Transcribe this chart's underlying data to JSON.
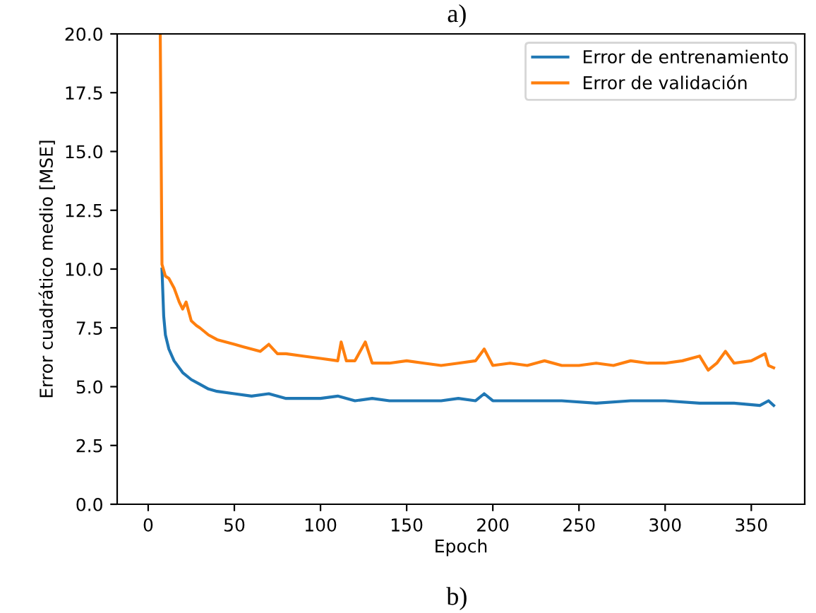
{
  "chart_data": {
    "type": "line",
    "xlabel": "Epoch",
    "ylabel": "Error cuadrático medio [MSE]",
    "annotations": [
      "a)",
      "b)"
    ],
    "xlim": [
      -18,
      381
    ],
    "xticks": [
      0,
      50,
      100,
      150,
      200,
      250,
      300,
      350
    ],
    "ylim": [
      0,
      20
    ],
    "yticks": [
      {
        "value": 0,
        "label": "0.0"
      },
      {
        "value": 2.5,
        "label": "2.5"
      },
      {
        "value": 5,
        "label": "5.0"
      },
      {
        "value": 7.5,
        "label": "7.5"
      },
      {
        "value": 10,
        "label": "10.0"
      },
      {
        "value": 12.5,
        "label": "12.5"
      },
      {
        "value": 15,
        "label": "15.0"
      },
      {
        "value": 17.5,
        "label": "17.5"
      },
      {
        "value": 20,
        "label": "20.0"
      }
    ],
    "grid": false,
    "legend": "top right",
    "marker": "none",
    "line_style": "solid",
    "series": [
      {
        "name": "Error de entrenamiento",
        "color": "#1f77b4",
        "x": [
          8,
          9,
          10,
          12,
          15,
          20,
          25,
          30,
          35,
          40,
          50,
          60,
          70,
          80,
          90,
          100,
          110,
          120,
          130,
          140,
          150,
          160,
          170,
          180,
          190,
          195,
          200,
          220,
          240,
          260,
          280,
          300,
          320,
          340,
          355,
          360,
          363
        ],
        "values": [
          10.0,
          8.0,
          7.2,
          6.6,
          6.1,
          5.6,
          5.3,
          5.1,
          4.9,
          4.8,
          4.7,
          4.6,
          4.7,
          4.5,
          4.5,
          4.5,
          4.6,
          4.4,
          4.5,
          4.4,
          4.4,
          4.4,
          4.4,
          4.5,
          4.4,
          4.7,
          4.4,
          4.4,
          4.4,
          4.3,
          4.4,
          4.4,
          4.3,
          4.3,
          4.2,
          4.4,
          4.2
        ]
      },
      {
        "name": "Error de validación",
        "color": "#ff7f0e",
        "x": [
          7,
          8,
          10,
          12,
          15,
          18,
          20,
          22,
          25,
          28,
          30,
          35,
          40,
          45,
          50,
          55,
          60,
          65,
          70,
          75,
          80,
          90,
          100,
          110,
          112,
          115,
          120,
          126,
          130,
          140,
          150,
          160,
          170,
          180,
          190,
          195,
          200,
          210,
          220,
          230,
          240,
          250,
          260,
          270,
          280,
          290,
          300,
          310,
          320,
          325,
          330,
          335,
          340,
          350,
          358,
          360,
          363
        ],
        "values": [
          20,
          10.2,
          9.7,
          9.6,
          9.2,
          8.6,
          8.3,
          8.6,
          7.8,
          7.6,
          7.5,
          7.2,
          7.0,
          6.9,
          6.8,
          6.7,
          6.6,
          6.5,
          6.8,
          6.4,
          6.4,
          6.3,
          6.2,
          6.1,
          6.9,
          6.1,
          6.1,
          6.9,
          6.0,
          6.0,
          6.1,
          6.0,
          5.9,
          6.0,
          6.1,
          6.6,
          5.9,
          6.0,
          5.9,
          6.1,
          5.9,
          5.9,
          6.0,
          5.9,
          6.1,
          6.0,
          6.0,
          6.1,
          6.3,
          5.7,
          6.0,
          6.5,
          6.0,
          6.1,
          6.4,
          5.9,
          5.8
        ]
      }
    ]
  }
}
